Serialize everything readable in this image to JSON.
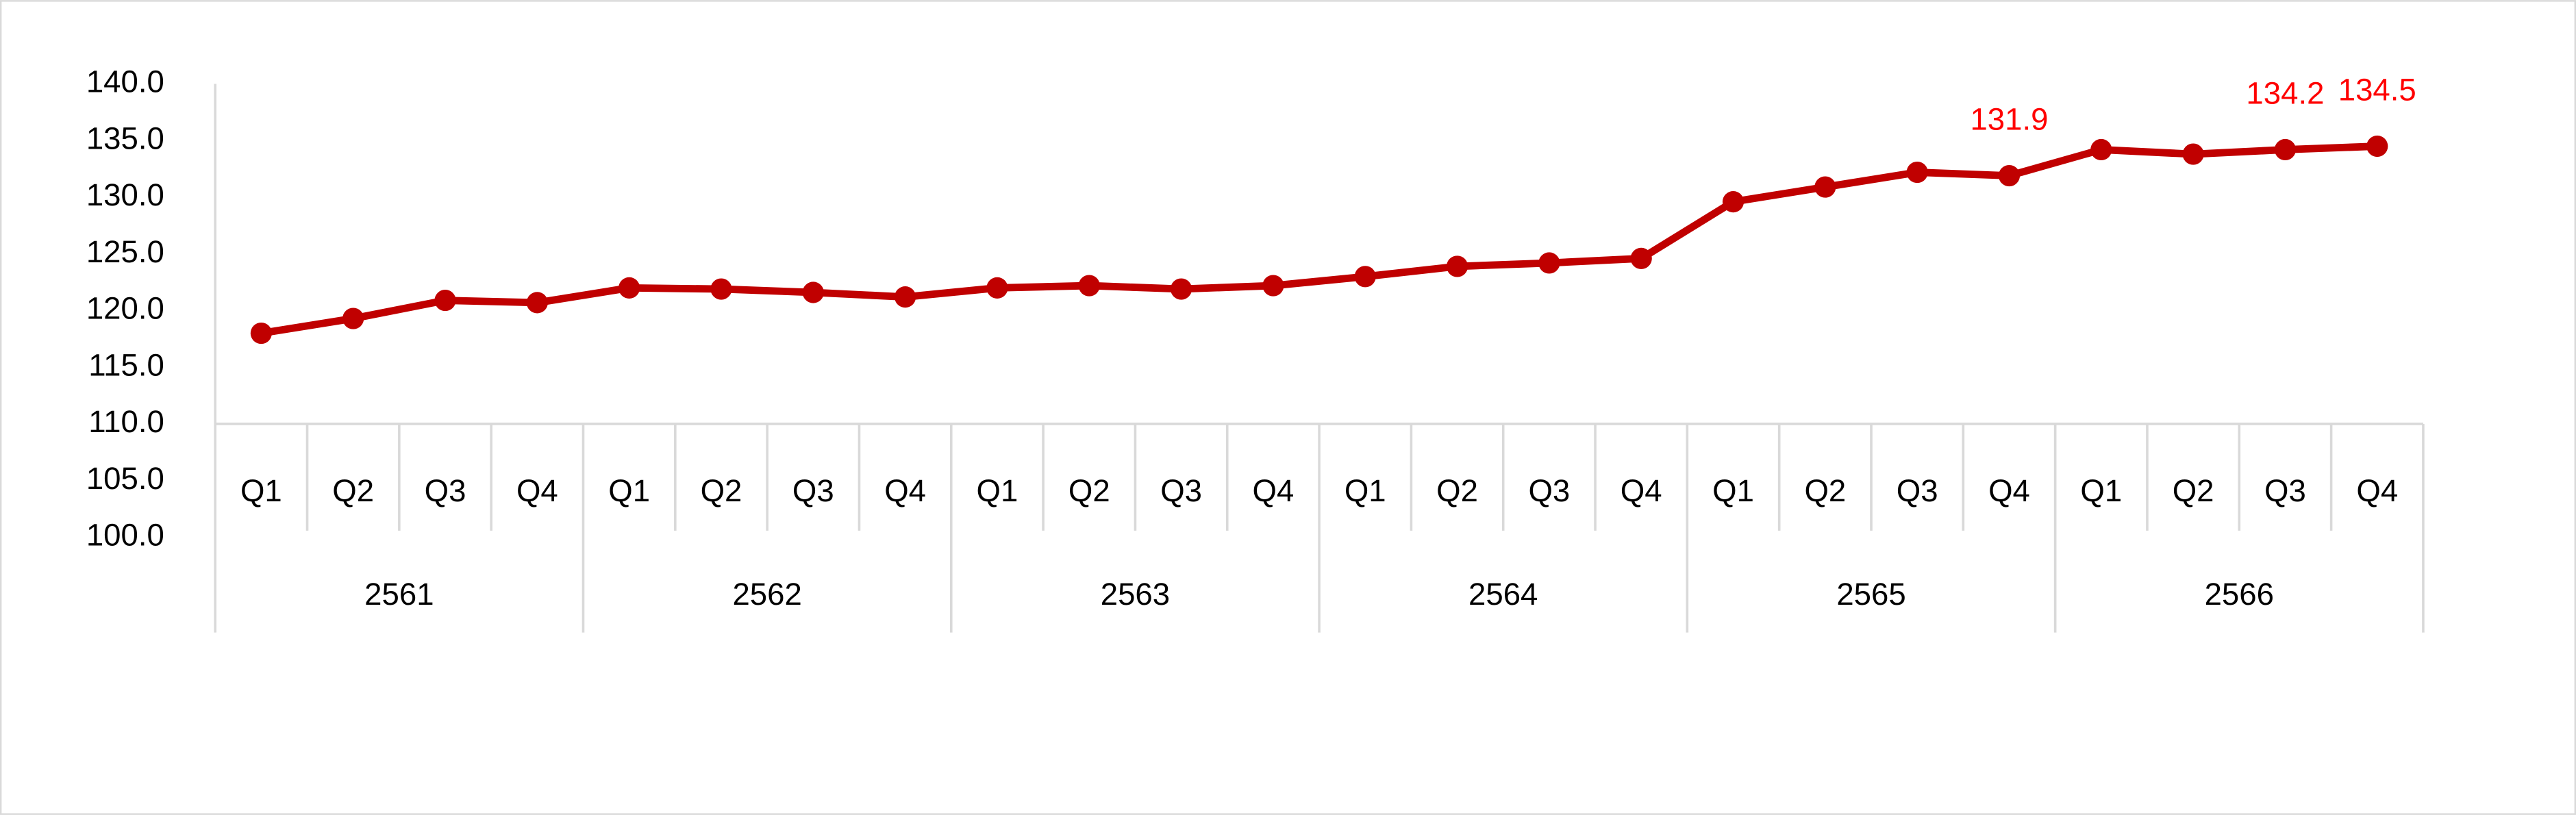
{
  "chart_data": {
    "type": "line",
    "categories": [
      "Q1",
      "Q2",
      "Q3",
      "Q4",
      "Q1",
      "Q2",
      "Q3",
      "Q4",
      "Q1",
      "Q2",
      "Q3",
      "Q4",
      "Q1",
      "Q2",
      "Q3",
      "Q4",
      "Q1",
      "Q2",
      "Q3",
      "Q4",
      "Q1",
      "Q2",
      "Q3",
      "Q4"
    ],
    "x_groups": [
      "2561",
      "2562",
      "2563",
      "2564",
      "2565",
      "2566"
    ],
    "series": [
      {
        "color": "#c00000",
        "values": [
          118.0,
          119.3,
          120.9,
          120.7,
          122.0,
          121.9,
          121.6,
          121.2,
          122.0,
          122.2,
          121.9,
          122.2,
          123.0,
          123.9,
          124.2,
          124.6,
          129.6,
          130.9,
          132.2,
          131.9,
          134.2,
          133.8,
          134.2,
          134.5
        ],
        "value_labels": [
          null,
          null,
          null,
          null,
          null,
          null,
          null,
          null,
          null,
          null,
          null,
          null,
          null,
          null,
          null,
          null,
          null,
          null,
          null,
          "131.9",
          null,
          null,
          "134.2",
          "134.5"
        ],
        "label_color": "#ff0000"
      }
    ],
    "ylim": [
      100,
      140
    ],
    "yticks": [
      {
        "value": 100,
        "label": "100.0"
      },
      {
        "value": 105,
        "label": "105.0"
      },
      {
        "value": 110,
        "label": "110.0"
      },
      {
        "value": 115,
        "label": "115.0"
      },
      {
        "value": 120,
        "label": "120.0"
      },
      {
        "value": 125,
        "label": "125.0"
      },
      {
        "value": 130,
        "label": "130.0"
      },
      {
        "value": 135,
        "label": "135.0"
      },
      {
        "value": 140,
        "label": "140.0"
      }
    ],
    "x_axis_at": 110,
    "grid": false
  }
}
